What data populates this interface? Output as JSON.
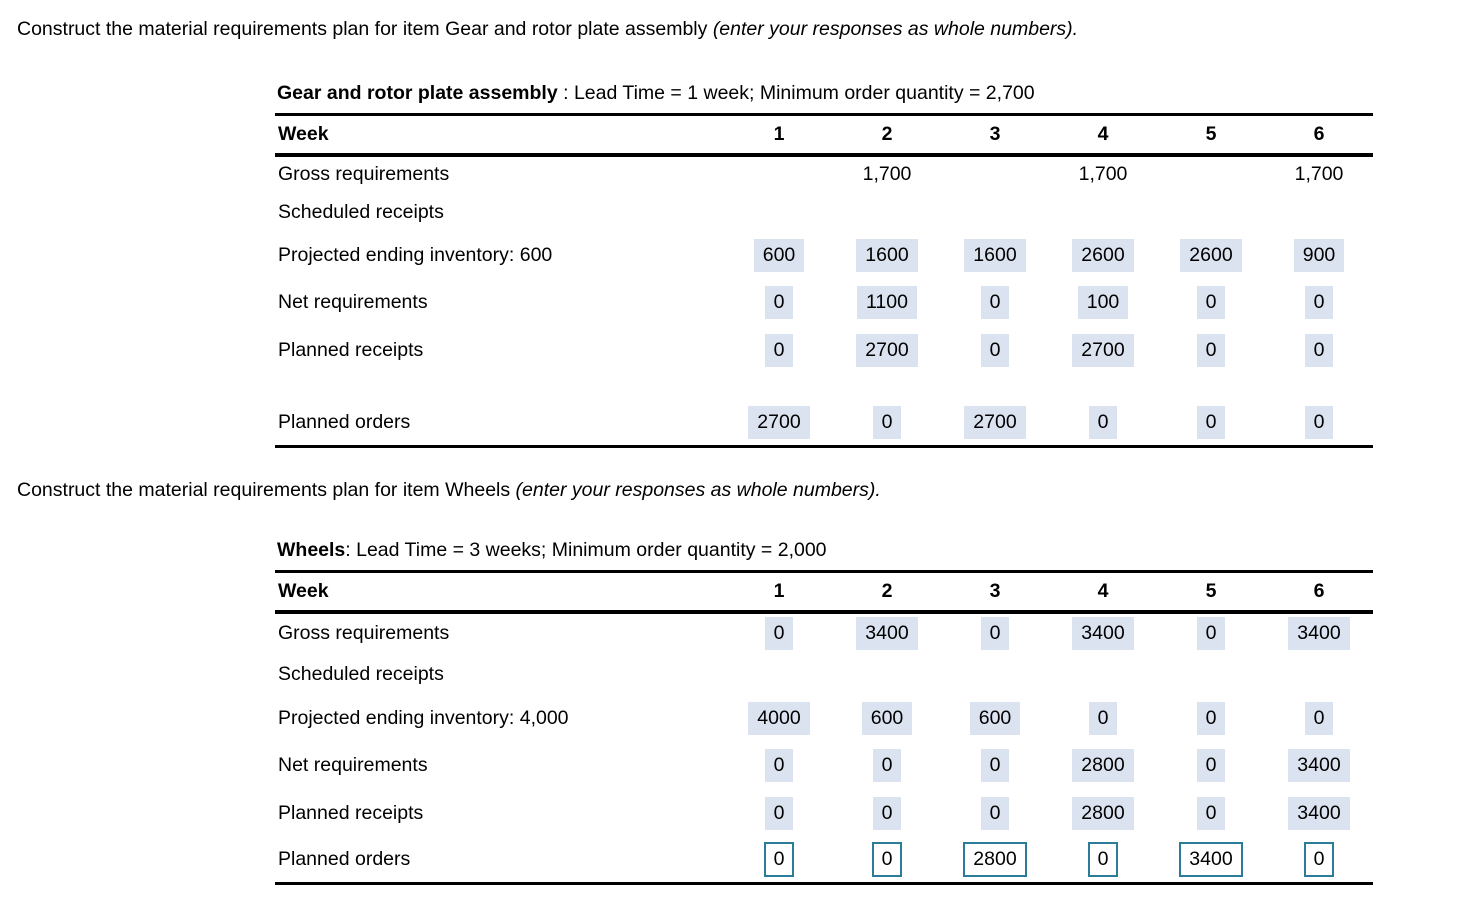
{
  "sections": [
    {
      "instruction": "Construct the material requirements plan for item Gear and rotor plate assembly ",
      "instruction_note": "(enter your responses as whole numbers).",
      "title_item": "Gear and rotor plate assembly",
      "title_details": " : Lead Time = 1 week; Minimum order quantity = 2,700",
      "week_header": "Week",
      "weeks": [
        "1",
        "2",
        "3",
        "4",
        "5",
        "6"
      ],
      "rows": [
        {
          "label": "Gross requirements",
          "cells": [
            "",
            "1,700",
            "",
            "1,700",
            "",
            "1,700"
          ]
        },
        {
          "label": "Scheduled receipts",
          "cells": [
            "",
            "",
            "",
            "",
            "",
            ""
          ]
        },
        {
          "label": "Projected ending inventory: 600",
          "cells": [
            "600",
            "1600",
            "1600",
            "2600",
            "2600",
            "900"
          ]
        },
        {
          "label": "Net requirements",
          "cells": [
            "0",
            "1100",
            "0",
            "100",
            "0",
            "0"
          ]
        },
        {
          "label": "Planned receipts",
          "cells": [
            "0",
            "2700",
            "0",
            "2700",
            "0",
            "0"
          ]
        },
        {
          "label": "Planned orders",
          "cells": [
            "2700",
            "0",
            "2700",
            "0",
            "0",
            "0"
          ]
        }
      ]
    },
    {
      "instruction": "Construct the material requirements plan for item Wheels ",
      "instruction_note": "(enter your responses as whole numbers).",
      "title_item": "Wheels",
      "title_details": ": Lead Time = 3 weeks; Minimum order quantity = 2,000",
      "week_header": "Week",
      "weeks": [
        "1",
        "2",
        "3",
        "4",
        "5",
        "6"
      ],
      "rows": [
        {
          "label": "Gross requirements",
          "cells": [
            "0",
            "3400",
            "0",
            "3400",
            "0",
            "3400"
          ]
        },
        {
          "label": "Scheduled receipts",
          "cells": [
            "",
            "",
            "",
            "",
            "",
            ""
          ]
        },
        {
          "label": "Projected ending inventory: 4,000",
          "cells": [
            "4000",
            "600",
            "600",
            "0",
            "0",
            "0"
          ]
        },
        {
          "label": "Net requirements",
          "cells": [
            "0",
            "0",
            "0",
            "2800",
            "0",
            "3400"
          ]
        },
        {
          "label": "Planned receipts",
          "cells": [
            "0",
            "0",
            "0",
            "2800",
            "0",
            "3400"
          ]
        },
        {
          "label": "Planned orders",
          "cells": [
            "0",
            "0",
            "2800",
            "0",
            "3400",
            "0"
          ]
        }
      ]
    }
  ],
  "colors": {
    "answer_highlight": "#dce3f0",
    "input_border": "#2b7c99"
  }
}
